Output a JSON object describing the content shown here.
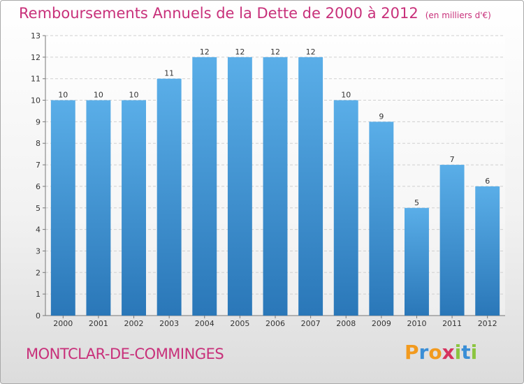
{
  "header": {
    "title": "Remboursements Annuels de la Dette de 2000 à 2012",
    "unit": "(en milliers d'€)"
  },
  "footer": {
    "commune": "MONTCLAR-DE-COMMINGES",
    "logo_text": "Proxiti",
    "logo_letters": [
      {
        "char": "P",
        "color": "#f29a1e"
      },
      {
        "char": "r",
        "color": "#3a8ed6"
      },
      {
        "char": "o",
        "color": "#f29a1e"
      },
      {
        "char": "x",
        "color": "#d6325e"
      },
      {
        "char": "i",
        "color": "#8bc53f"
      },
      {
        "char": "t",
        "color": "#3a8ed6"
      },
      {
        "char": "i",
        "color": "#8bc53f"
      }
    ]
  },
  "colors": {
    "bar_top": "#5aaee8",
    "bar_bottom": "#2a77b8",
    "accent": "#c8307a"
  },
  "chart_data": {
    "type": "bar",
    "title": "Remboursements Annuels de la Dette de 2000 à 2012",
    "categories": [
      "2000",
      "2001",
      "2002",
      "2003",
      "2004",
      "2005",
      "2006",
      "2007",
      "2008",
      "2009",
      "2010",
      "2011",
      "2012"
    ],
    "values": [
      10,
      10,
      10,
      11,
      12,
      12,
      12,
      12,
      10,
      9,
      5,
      7,
      6
    ],
    "ylim": [
      0,
      13
    ],
    "yticks": [
      0,
      1,
      2,
      3,
      4,
      5,
      6,
      7,
      8,
      9,
      10,
      11,
      12,
      13
    ],
    "grid": true,
    "xlabel": "",
    "ylabel": ""
  }
}
